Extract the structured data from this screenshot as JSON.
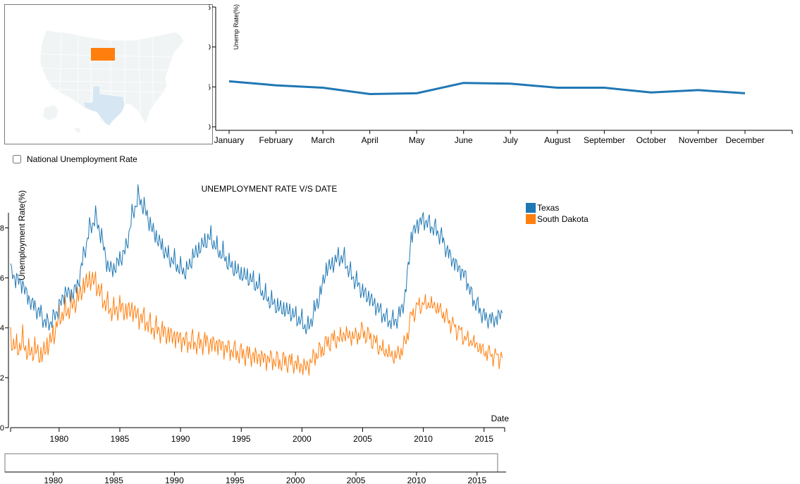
{
  "map": {
    "states": [
      {
        "name": "South Dakota",
        "color": "#ff7f0e"
      },
      {
        "name": "Texas",
        "color": "#d6e6f2"
      }
    ],
    "base_color": "#f1f4f5"
  },
  "national_toggle": {
    "label": "National Unemployment Rate",
    "checked": false
  },
  "colors": {
    "texas": "#1f77b4",
    "south_dakota": "#ff7f0e"
  },
  "chart_data": [
    {
      "type": "line",
      "title": "",
      "xlabel": "",
      "ylabel": "Unemp Rate(%)",
      "categories": [
        "January",
        "February",
        "March",
        "April",
        "May",
        "June",
        "July",
        "August",
        "September",
        "October",
        "November",
        "December"
      ],
      "series": [
        {
          "values": [
            5.7,
            5.2,
            4.9,
            4.1,
            4.2,
            5.5,
            5.4,
            4.9,
            4.9,
            4.3,
            4.6,
            4.2
          ]
        }
      ],
      "ylim": [
        0,
        15
      ],
      "yticks": [
        0,
        5,
        10,
        15
      ],
      "grid": false
    },
    {
      "type": "line",
      "title": "UNEMPLOYMENT RATE V/S DATE",
      "xlabel": "Date",
      "ylabel": "Unemployment Rate(%)",
      "xlim": [
        1976.0,
        2016.7
      ],
      "ylim": [
        0,
        9
      ],
      "yticks": [
        0,
        2,
        4,
        6,
        8
      ],
      "xticks": [
        1980,
        1985,
        1990,
        1995,
        2000,
        2005,
        2010,
        2015
      ],
      "legend": "top-right",
      "grid": false,
      "series": [
        {
          "name": "Texas",
          "x": [
            1976.0,
            1976.5,
            1977.0,
            1977.5,
            1978.0,
            1978.5,
            1979.0,
            1979.5,
            1980.0,
            1980.5,
            1981.0,
            1981.5,
            1982.0,
            1982.5,
            1983.0,
            1983.5,
            1984.0,
            1984.5,
            1985.0,
            1985.5,
            1986.0,
            1986.5,
            1987.0,
            1987.5,
            1988.0,
            1988.5,
            1989.0,
            1989.5,
            1990.0,
            1990.5,
            1991.0,
            1991.5,
            1992.0,
            1992.5,
            1993.0,
            1993.5,
            1994.0,
            1994.5,
            1995.0,
            1995.5,
            1996.0,
            1996.5,
            1997.0,
            1997.5,
            1998.0,
            1998.5,
            1999.0,
            1999.5,
            2000.0,
            2000.5,
            2001.0,
            2001.5,
            2002.0,
            2002.5,
            2003.0,
            2003.5,
            2004.0,
            2004.5,
            2005.0,
            2005.5,
            2006.0,
            2006.5,
            2007.0,
            2007.5,
            2008.0,
            2008.5,
            2009.0,
            2009.5,
            2010.0,
            2010.5,
            2011.0,
            2011.5,
            2012.0,
            2012.5,
            2013.0,
            2013.5,
            2014.0,
            2014.5,
            2015.0,
            2015.5,
            2016.0,
            2016.5
          ],
          "values": [
            6.2,
            5.9,
            5.7,
            5.1,
            4.8,
            4.5,
            4.1,
            4.3,
            4.8,
            5.4,
            5.3,
            5.6,
            6.8,
            7.9,
            8.4,
            7.6,
            6.4,
            6.3,
            6.7,
            7.1,
            8.4,
            9.2,
            8.8,
            8.1,
            7.6,
            7.2,
            6.8,
            6.6,
            6.3,
            6.2,
            6.8,
            7.1,
            7.4,
            7.6,
            7.1,
            6.9,
            6.5,
            6.3,
            6.1,
            6.0,
            5.8,
            5.6,
            5.2,
            5.0,
            4.8,
            4.7,
            4.6,
            4.4,
            4.2,
            3.9,
            4.6,
            5.3,
            6.3,
            6.5,
            6.8,
            6.7,
            6.1,
            5.8,
            5.4,
            5.2,
            4.9,
            4.6,
            4.3,
            4.2,
            4.4,
            5.2,
            7.6,
            8.1,
            8.3,
            8.1,
            7.9,
            7.6,
            7.0,
            6.6,
            6.3,
            6.0,
            5.2,
            4.8,
            4.4,
            4.3,
            4.3,
            4.6
          ]
        },
        {
          "name": "South Dakota",
          "x": [
            1976.0,
            1976.5,
            1977.0,
            1977.5,
            1978.0,
            1978.5,
            1979.0,
            1979.5,
            1980.0,
            1980.5,
            1981.0,
            1981.5,
            1982.0,
            1982.5,
            1983.0,
            1983.5,
            1984.0,
            1984.5,
            1985.0,
            1985.5,
            1986.0,
            1986.5,
            1987.0,
            1987.5,
            1988.0,
            1988.5,
            1989.0,
            1989.5,
            1990.0,
            1990.5,
            1991.0,
            1991.5,
            1992.0,
            1992.5,
            1993.0,
            1993.5,
            1994.0,
            1994.5,
            1995.0,
            1995.5,
            1996.0,
            1996.5,
            1997.0,
            1997.5,
            1998.0,
            1998.5,
            1999.0,
            1999.5,
            2000.0,
            2000.5,
            2001.0,
            2001.5,
            2002.0,
            2002.5,
            2003.0,
            2003.5,
            2004.0,
            2004.5,
            2005.0,
            2005.5,
            2006.0,
            2006.5,
            2007.0,
            2007.5,
            2008.0,
            2008.5,
            2009.0,
            2009.5,
            2010.0,
            2010.5,
            2011.0,
            2011.5,
            2012.0,
            2012.5,
            2013.0,
            2013.5,
            2014.0,
            2014.5,
            2015.0,
            2015.5,
            2016.0,
            2016.5
          ],
          "values": [
            3.5,
            3.1,
            3.4,
            2.9,
            3.1,
            2.8,
            3.2,
            3.6,
            4.4,
            4.6,
            4.8,
            5.1,
            5.6,
            5.9,
            5.8,
            5.2,
            4.8,
            4.6,
            4.8,
            4.6,
            4.7,
            4.4,
            4.3,
            4.0,
            3.9,
            3.8,
            3.7,
            3.6,
            3.5,
            3.4,
            3.4,
            3.3,
            3.4,
            3.3,
            3.3,
            3.2,
            3.1,
            3.0,
            2.9,
            2.9,
            2.8,
            2.8,
            2.7,
            2.7,
            2.6,
            2.6,
            2.6,
            2.5,
            2.4,
            2.4,
            2.8,
            3.0,
            3.3,
            3.5,
            3.5,
            3.7,
            3.6,
            3.6,
            3.8,
            3.6,
            3.4,
            3.1,
            3.0,
            2.8,
            2.9,
            3.3,
            4.4,
            4.8,
            4.9,
            4.9,
            4.8,
            4.6,
            4.3,
            4.0,
            3.8,
            3.5,
            3.4,
            3.2,
            3.0,
            2.9,
            2.8,
            2.8
          ]
        }
      ]
    },
    {
      "type": "line",
      "title": "",
      "xlim": [
        1976.0,
        2016.7
      ],
      "xticks": [
        1980,
        1985,
        1990,
        1995,
        2000,
        2005,
        2010,
        2015
      ]
    }
  ]
}
